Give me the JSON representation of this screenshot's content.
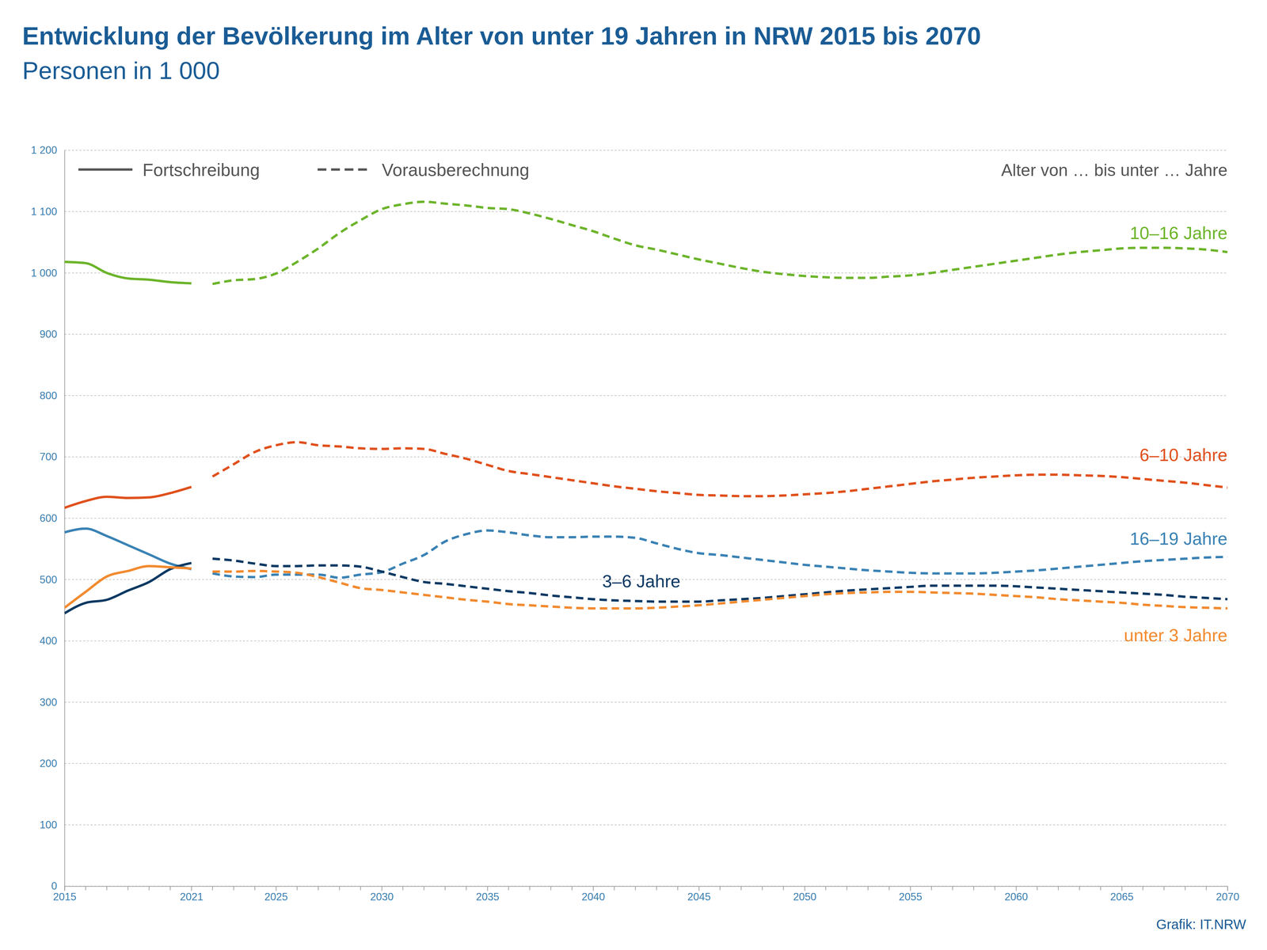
{
  "chart_data": {
    "type": "line",
    "title": "Entwicklung der Bevölkerung im Alter von unter 19 Jahren in NRW 2015 bis 2070",
    "subtitle": "Personen in 1 000",
    "source": "Grafik: IT.NRW",
    "style_key": [
      {
        "text": "Fortschreibung",
        "line_style": "solid"
      },
      {
        "text": "Vorausberechnung",
        "line_style": "dashed"
      }
    ],
    "legend_title": "Alter von … bis unter …  Jahre",
    "xlim": [
      2015,
      2070
    ],
    "xticks": [
      2015,
      2021,
      2025,
      2030,
      2035,
      2040,
      2045,
      2050,
      2055,
      2060,
      2065,
      2070
    ],
    "ylim": [
      0,
      1200
    ],
    "yticks": [
      0,
      100,
      200,
      300,
      400,
      500,
      600,
      700,
      800,
      900,
      {
        "value": 1000,
        "label": "1 000"
      },
      {
        "value": 1100,
        "label": "1 100"
      },
      {
        "value": 1200,
        "label": "1 200"
      }
    ],
    "grid": true,
    "series": [
      {
        "color": "#6cb42a",
        "line_style": "solid",
        "x": [
          2015,
          2016,
          2017,
          2018,
          2019,
          2020,
          2021
        ],
        "values": [
          1018,
          1016,
          1000,
          991,
          989,
          985,
          983
        ]
      },
      {
        "name": "10–16 Jahre",
        "color": "#6cb42a",
        "line_style": "dashed",
        "x": [
          2022,
          2023,
          2024,
          2025,
          2026,
          2027,
          2028,
          2029,
          2030,
          2031,
          2032,
          2033,
          2034,
          2035,
          2036,
          2037,
          2038,
          2039,
          2040,
          2041,
          2042,
          2043,
          2044,
          2045,
          2046,
          2047,
          2048,
          2049,
          2050,
          2051,
          2052,
          2053,
          2054,
          2055,
          2056,
          2057,
          2058,
          2059,
          2060,
          2061,
          2062,
          2063,
          2064,
          2065,
          2066,
          2067,
          2068,
          2069,
          2070
        ],
        "values": [
          982,
          988,
          990,
          999,
          1018,
          1040,
          1065,
          1086,
          1104,
          1112,
          1116,
          1113,
          1110,
          1106,
          1104,
          1097,
          1088,
          1078,
          1068,
          1056,
          1045,
          1038,
          1030,
          1022,
          1015,
          1008,
          1002,
          998,
          995,
          993,
          992,
          992,
          994,
          996,
          1000,
          1005,
          1010,
          1015,
          1020,
          1025,
          1030,
          1034,
          1037,
          1040,
          1041,
          1041,
          1040,
          1038,
          1034
        ]
      },
      {
        "color": "#e0501c",
        "line_style": "solid",
        "x": [
          2015,
          2016,
          2017,
          2018,
          2019,
          2020,
          2021
        ],
        "values": [
          617,
          628,
          635,
          633,
          634,
          641,
          651
        ]
      },
      {
        "name": "6–10 Jahre",
        "color": "#e0501c",
        "line_style": "dashed",
        "x": [
          2022,
          2023,
          2024,
          2025,
          2026,
          2027,
          2028,
          2029,
          2030,
          2031,
          2032,
          2033,
          2034,
          2035,
          2036,
          2037,
          2038,
          2039,
          2040,
          2041,
          2042,
          2043,
          2044,
          2045,
          2046,
          2047,
          2048,
          2049,
          2050,
          2051,
          2052,
          2053,
          2054,
          2055,
          2056,
          2057,
          2058,
          2059,
          2060,
          2061,
          2062,
          2063,
          2064,
          2065,
          2066,
          2067,
          2068,
          2069,
          2070
        ],
        "values": [
          668,
          688,
          708,
          719,
          724,
          719,
          717,
          714,
          713,
          714,
          713,
          705,
          697,
          687,
          677,
          672,
          667,
          662,
          657,
          652,
          648,
          644,
          641,
          638,
          637,
          636,
          636,
          637,
          639,
          641,
          644,
          648,
          652,
          656,
          660,
          663,
          666,
          668,
          670,
          671,
          671,
          670,
          669,
          667,
          664,
          661,
          658,
          654,
          650
        ]
      },
      {
        "color": "#3a82b4",
        "line_style": "solid",
        "x": [
          2015,
          2016,
          2017,
          2018,
          2019,
          2020,
          2021
        ],
        "values": [
          577,
          583,
          571,
          556,
          541,
          526,
          517
        ]
      },
      {
        "name": "16–19 Jahre",
        "color": "#3a82b4",
        "line_style": "dashed",
        "x": [
          2022,
          2023,
          2024,
          2025,
          2026,
          2027,
          2028,
          2029,
          2030,
          2031,
          2032,
          2033,
          2034,
          2035,
          2036,
          2037,
          2038,
          2039,
          2040,
          2041,
          2042,
          2043,
          2044,
          2045,
          2046,
          2047,
          2048,
          2049,
          2050,
          2051,
          2052,
          2053,
          2054,
          2055,
          2056,
          2057,
          2058,
          2059,
          2060,
          2061,
          2062,
          2063,
          2064,
          2065,
          2066,
          2067,
          2068,
          2069,
          2070
        ],
        "values": [
          510,
          505,
          504,
          508,
          508,
          508,
          503,
          508,
          512,
          526,
          540,
          562,
          574,
          580,
          577,
          572,
          569,
          569,
          570,
          570,
          568,
          559,
          550,
          543,
          540,
          536,
          532,
          528,
          524,
          521,
          518,
          515,
          513,
          511,
          510,
          510,
          510,
          511,
          513,
          515,
          518,
          521,
          524,
          527,
          530,
          532,
          534,
          536,
          537
        ]
      },
      {
        "color": "#0c3963",
        "line_style": "solid",
        "x": [
          2015,
          2016,
          2017,
          2018,
          2019,
          2020,
          2021
        ],
        "values": [
          445,
          462,
          467,
          482,
          496,
          517,
          527
        ]
      },
      {
        "name": "3–6 Jahre",
        "color": "#0c3963",
        "line_style": "dashed",
        "x": [
          2022,
          2023,
          2024,
          2025,
          2026,
          2027,
          2028,
          2029,
          2030,
          2031,
          2032,
          2033,
          2034,
          2035,
          2036,
          2037,
          2038,
          2039,
          2040,
          2041,
          2042,
          2043,
          2044,
          2045,
          2046,
          2047,
          2048,
          2049,
          2050,
          2051,
          2052,
          2053,
          2054,
          2055,
          2056,
          2057,
          2058,
          2059,
          2060,
          2061,
          2062,
          2063,
          2064,
          2065,
          2066,
          2067,
          2068,
          2069,
          2070
        ],
        "values": [
          534,
          531,
          526,
          522,
          522,
          523,
          523,
          521,
          513,
          504,
          496,
          493,
          489,
          485,
          481,
          478,
          474,
          471,
          468,
          466,
          465,
          464,
          464,
          464,
          466,
          468,
          470,
          473,
          476,
          479,
          482,
          484,
          486,
          488,
          490,
          490,
          490,
          490,
          489,
          487,
          485,
          483,
          481,
          479,
          477,
          475,
          472,
          470,
          468
        ]
      },
      {
        "color": "#f28a2e",
        "line_style": "solid",
        "x": [
          2015,
          2016,
          2017,
          2018,
          2019,
          2020,
          2021
        ],
        "values": [
          454,
          480,
          505,
          514,
          522,
          520,
          518
        ]
      },
      {
        "name": "unter 3 Jahre",
        "color": "#f28a2e",
        "line_style": "dashed",
        "x": [
          2022,
          2023,
          2024,
          2025,
          2026,
          2027,
          2028,
          2029,
          2030,
          2031,
          2032,
          2033,
          2034,
          2035,
          2036,
          2037,
          2038,
          2039,
          2040,
          2041,
          2042,
          2043,
          2044,
          2045,
          2046,
          2047,
          2048,
          2049,
          2050,
          2051,
          2052,
          2053,
          2054,
          2055,
          2056,
          2057,
          2058,
          2059,
          2060,
          2061,
          2062,
          2063,
          2064,
          2065,
          2066,
          2067,
          2068,
          2069,
          2070
        ],
        "values": [
          513,
          513,
          514,
          513,
          511,
          504,
          495,
          486,
          483,
          479,
          475,
          471,
          467,
          464,
          460,
          458,
          456,
          454,
          453,
          453,
          453,
          454,
          456,
          458,
          461,
          464,
          467,
          470,
          473,
          476,
          478,
          479,
          480,
          480,
          479,
          478,
          477,
          475,
          473,
          471,
          468,
          466,
          464,
          462,
          459,
          457,
          455,
          454,
          453
        ]
      }
    ]
  }
}
